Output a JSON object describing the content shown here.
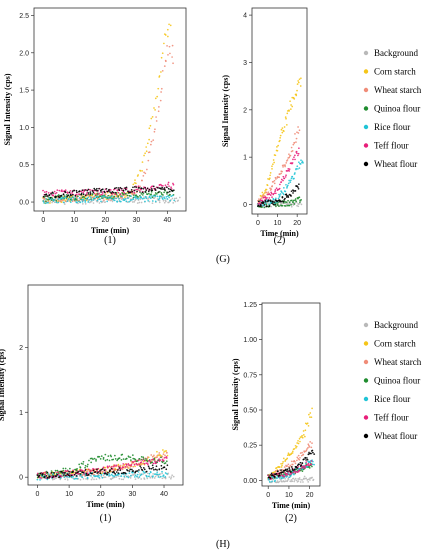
{
  "panel_letters": [
    "(G)",
    "(H)"
  ],
  "legend_entries": [
    {
      "label": "Background",
      "color": "#b9b9b9"
    },
    {
      "label": "Corn starch",
      "color": "#f5c518"
    },
    {
      "label": "Wheat starch",
      "color": "#f08c78"
    },
    {
      "label": "Quinoa flour",
      "color": "#1f8c2e"
    },
    {
      "label": "Rice flour",
      "color": "#20c4d6"
    },
    {
      "label": "Teff flour",
      "color": "#e81f7a"
    },
    {
      "label": "Wheat flour",
      "color": "#000000"
    }
  ],
  "chart_data": [
    {
      "id": "G1",
      "type": "scatter",
      "panel": "(G)",
      "subtitle": "(1)",
      "xlabel": "Time (min)",
      "ylabel": "Signal Intensity (cps)",
      "xlim": [
        -3,
        46
      ],
      "ylim": [
        -0.12,
        2.6
      ],
      "xticks": [
        0,
        10,
        20,
        30,
        40
      ],
      "yticks": [
        0.0,
        0.5,
        1.0,
        1.5,
        2.0,
        2.5
      ],
      "tick_labels_y": [
        "0.0",
        "0.5",
        "1.0",
        "1.5",
        "2.0",
        "2.5"
      ],
      "series": [
        {
          "name": "Background",
          "color": "#b9b9b9",
          "x": [
            0,
            42
          ],
          "y": [
            0.01,
            0.03
          ],
          "end": 44
        },
        {
          "name": "Corn starch",
          "color": "#f5c518",
          "x": [
            0,
            10,
            20,
            28,
            32,
            36,
            40
          ],
          "y": [
            0.02,
            0.05,
            0.08,
            0.1,
            0.5,
            1.3,
            2.3
          ],
          "end": 41
        },
        {
          "name": "Wheat starch",
          "color": "#f08c78",
          "x": [
            0,
            20,
            30,
            33,
            37,
            40
          ],
          "y": [
            0.04,
            0.06,
            0.1,
            0.4,
            1.2,
            2.0
          ],
          "end": 42
        },
        {
          "name": "Quinoa flour",
          "color": "#1f8c2e",
          "x": [
            0,
            20,
            40
          ],
          "y": [
            0.05,
            0.08,
            0.12
          ],
          "end": 42
        },
        {
          "name": "Rice flour",
          "color": "#20c4d6",
          "x": [
            0,
            20,
            40
          ],
          "y": [
            0.02,
            0.04,
            0.05
          ],
          "end": 42
        },
        {
          "name": "Teff flour",
          "color": "#e81f7a",
          "x": [
            0,
            20,
            35,
            40
          ],
          "y": [
            0.12,
            0.14,
            0.18,
            0.22
          ],
          "end": 42
        },
        {
          "name": "Wheat flour",
          "color": "#000000",
          "x": [
            0,
            20,
            40
          ],
          "y": [
            0.08,
            0.15,
            0.17
          ],
          "end": 42
        }
      ]
    },
    {
      "id": "G2",
      "type": "scatter",
      "panel": "(G)",
      "subtitle": "(2)",
      "xlabel": "Time (min)",
      "ylabel": "Signal Intensity (cps)",
      "xlim": [
        -3,
        25
      ],
      "ylim": [
        -0.2,
        4.15
      ],
      "xticks": [
        0,
        10,
        20
      ],
      "yticks": [
        0,
        1,
        2,
        3,
        4
      ],
      "tick_labels_y": [
        "0",
        "1",
        "2",
        "3",
        "4"
      ],
      "series": [
        {
          "name": "Background",
          "color": "#b9b9b9",
          "x": [
            0,
            22
          ],
          "y": [
            0.0,
            0.02
          ],
          "end": 22
        },
        {
          "name": "Corn starch",
          "color": "#f5c518",
          "x": [
            0,
            4,
            10,
            16,
            22
          ],
          "y": [
            0.05,
            0.3,
            1.2,
            2.0,
            2.7
          ],
          "end": 22
        },
        {
          "name": "Wheat starch",
          "color": "#f08c78",
          "x": [
            0,
            5,
            10,
            16,
            21
          ],
          "y": [
            0.05,
            0.25,
            0.6,
            1.0,
            1.6
          ],
          "end": 21
        },
        {
          "name": "Quinoa flour",
          "color": "#1f8c2e",
          "x": [
            0,
            15,
            22
          ],
          "y": [
            0.0,
            0.02,
            0.1
          ],
          "end": 22
        },
        {
          "name": "Rice flour",
          "color": "#20c4d6",
          "x": [
            0,
            10,
            16,
            22
          ],
          "y": [
            0.0,
            0.1,
            0.45,
            0.9
          ],
          "end": 23
        },
        {
          "name": "Teff flour",
          "color": "#e81f7a",
          "x": [
            0,
            10,
            15,
            21
          ],
          "y": [
            0.02,
            0.3,
            0.7,
            1.2
          ],
          "end": 21
        },
        {
          "name": "Wheat flour",
          "color": "#000000",
          "x": [
            0,
            10,
            16,
            21
          ],
          "y": [
            0.0,
            0.05,
            0.2,
            0.4
          ],
          "end": 21
        }
      ]
    },
    {
      "id": "H1",
      "type": "scatter",
      "panel": "(H)",
      "subtitle": "(1)",
      "xlabel": "Time (min)",
      "ylabel": "Signal Intensity (cps)",
      "xlim": [
        -3,
        46
      ],
      "ylim": [
        -0.12,
        2.96
      ],
      "xticks": [
        0,
        10,
        20,
        30,
        40
      ],
      "yticks": [
        0,
        1,
        2
      ],
      "tick_labels_y": [
        "0",
        "1",
        "2"
      ],
      "series": [
        {
          "name": "Background",
          "color": "#b9b9b9",
          "x": [
            0,
            42
          ],
          "y": [
            0.0,
            0.02
          ],
          "end": 43
        },
        {
          "name": "Corn starch",
          "color": "#f5c518",
          "x": [
            0,
            20,
            35,
            40
          ],
          "y": [
            0.02,
            0.1,
            0.25,
            0.4
          ],
          "end": 41
        },
        {
          "name": "Wheat starch",
          "color": "#f08c78",
          "x": [
            0,
            20,
            30,
            40
          ],
          "y": [
            0.02,
            0.08,
            0.2,
            0.35
          ],
          "end": 41
        },
        {
          "name": "Quinoa flour",
          "color": "#1f8c2e",
          "x": [
            0,
            10,
            20,
            30,
            40
          ],
          "y": [
            0.02,
            0.1,
            0.3,
            0.3,
            0.25
          ],
          "end": 41
        },
        {
          "name": "Rice flour",
          "color": "#20c4d6",
          "x": [
            0,
            20,
            40
          ],
          "y": [
            0.0,
            0.03,
            0.05
          ],
          "end": 41
        },
        {
          "name": "Teff flour",
          "color": "#e81f7a",
          "x": [
            0,
            20,
            30,
            40
          ],
          "y": [
            0.02,
            0.1,
            0.2,
            0.28
          ],
          "end": 41
        },
        {
          "name": "Wheat flour",
          "color": "#000000",
          "x": [
            0,
            20,
            40
          ],
          "y": [
            0.02,
            0.08,
            0.15
          ],
          "end": 41
        }
      ]
    },
    {
      "id": "H2",
      "type": "scatter",
      "panel": "(H)",
      "subtitle": "(2)",
      "xlabel": "Time (min)",
      "ylabel": "Signal Intensity (cps)",
      "xlim": [
        -3,
        25
      ],
      "ylim": [
        -0.04,
        1.26
      ],
      "xticks": [
        0,
        10,
        20
      ],
      "yticks": [
        0.0,
        0.25,
        0.5,
        0.75,
        1.0,
        1.25
      ],
      "tick_labels_y": [
        "0.00",
        "0.25",
        "0.50",
        "0.75",
        "1.00",
        "1.25"
      ],
      "series": [
        {
          "name": "Background",
          "color": "#b9b9b9",
          "x": [
            0,
            22
          ],
          "y": [
            0.0,
            0.01
          ],
          "end": 22
        },
        {
          "name": "Corn starch",
          "color": "#f5c518",
          "x": [
            0,
            6,
            12,
            18,
            21
          ],
          "y": [
            0.02,
            0.1,
            0.22,
            0.35,
            0.5
          ],
          "end": 21
        },
        {
          "name": "Wheat starch",
          "color": "#f08c78",
          "x": [
            0,
            8,
            14,
            20
          ],
          "y": [
            0.02,
            0.08,
            0.15,
            0.25
          ],
          "end": 21
        },
        {
          "name": "Quinoa flour",
          "color": "#1f8c2e",
          "x": [
            0,
            10,
            20
          ],
          "y": [
            0.02,
            0.05,
            0.1
          ],
          "end": 21
        },
        {
          "name": "Rice flour",
          "color": "#20c4d6",
          "x": [
            0,
            10,
            20
          ],
          "y": [
            0.0,
            0.04,
            0.12
          ],
          "end": 22
        },
        {
          "name": "Teff flour",
          "color": "#e81f7a",
          "x": [
            0,
            10,
            20
          ],
          "y": [
            0.02,
            0.05,
            0.12
          ],
          "end": 21
        },
        {
          "name": "Wheat flour",
          "color": "#000000",
          "x": [
            0,
            8,
            15,
            21
          ],
          "y": [
            0.03,
            0.06,
            0.1,
            0.2
          ],
          "end": 22
        }
      ]
    }
  ]
}
